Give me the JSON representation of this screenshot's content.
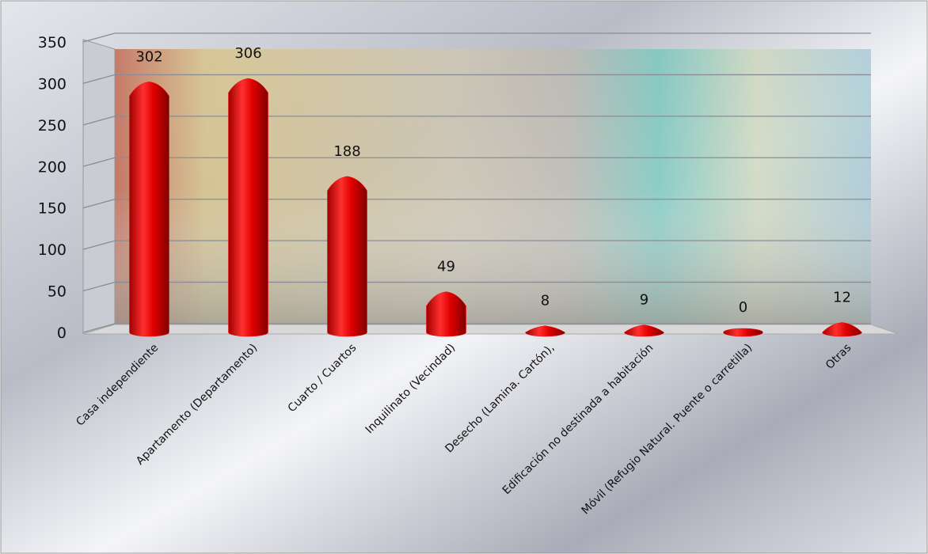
{
  "chart_data": {
    "type": "bar",
    "categories": [
      "Casa independiente",
      "Apartamento (Departamento)",
      "Cuarto / Cuartos",
      "Inquilinato (Vecindad)",
      "Desecho (Lamina. Cartón),",
      "Edificación no destinada a habitación",
      "Móvil (Refugio Natural. Puente o carretilla)",
      "Otras"
    ],
    "values": [
      302,
      306,
      188,
      49,
      8,
      9,
      0,
      12
    ],
    "color": "#ff0000",
    "ylim": [
      0,
      350
    ],
    "yticks": [
      0,
      50,
      100,
      150,
      200,
      250,
      300,
      350
    ],
    "grid": true
  }
}
